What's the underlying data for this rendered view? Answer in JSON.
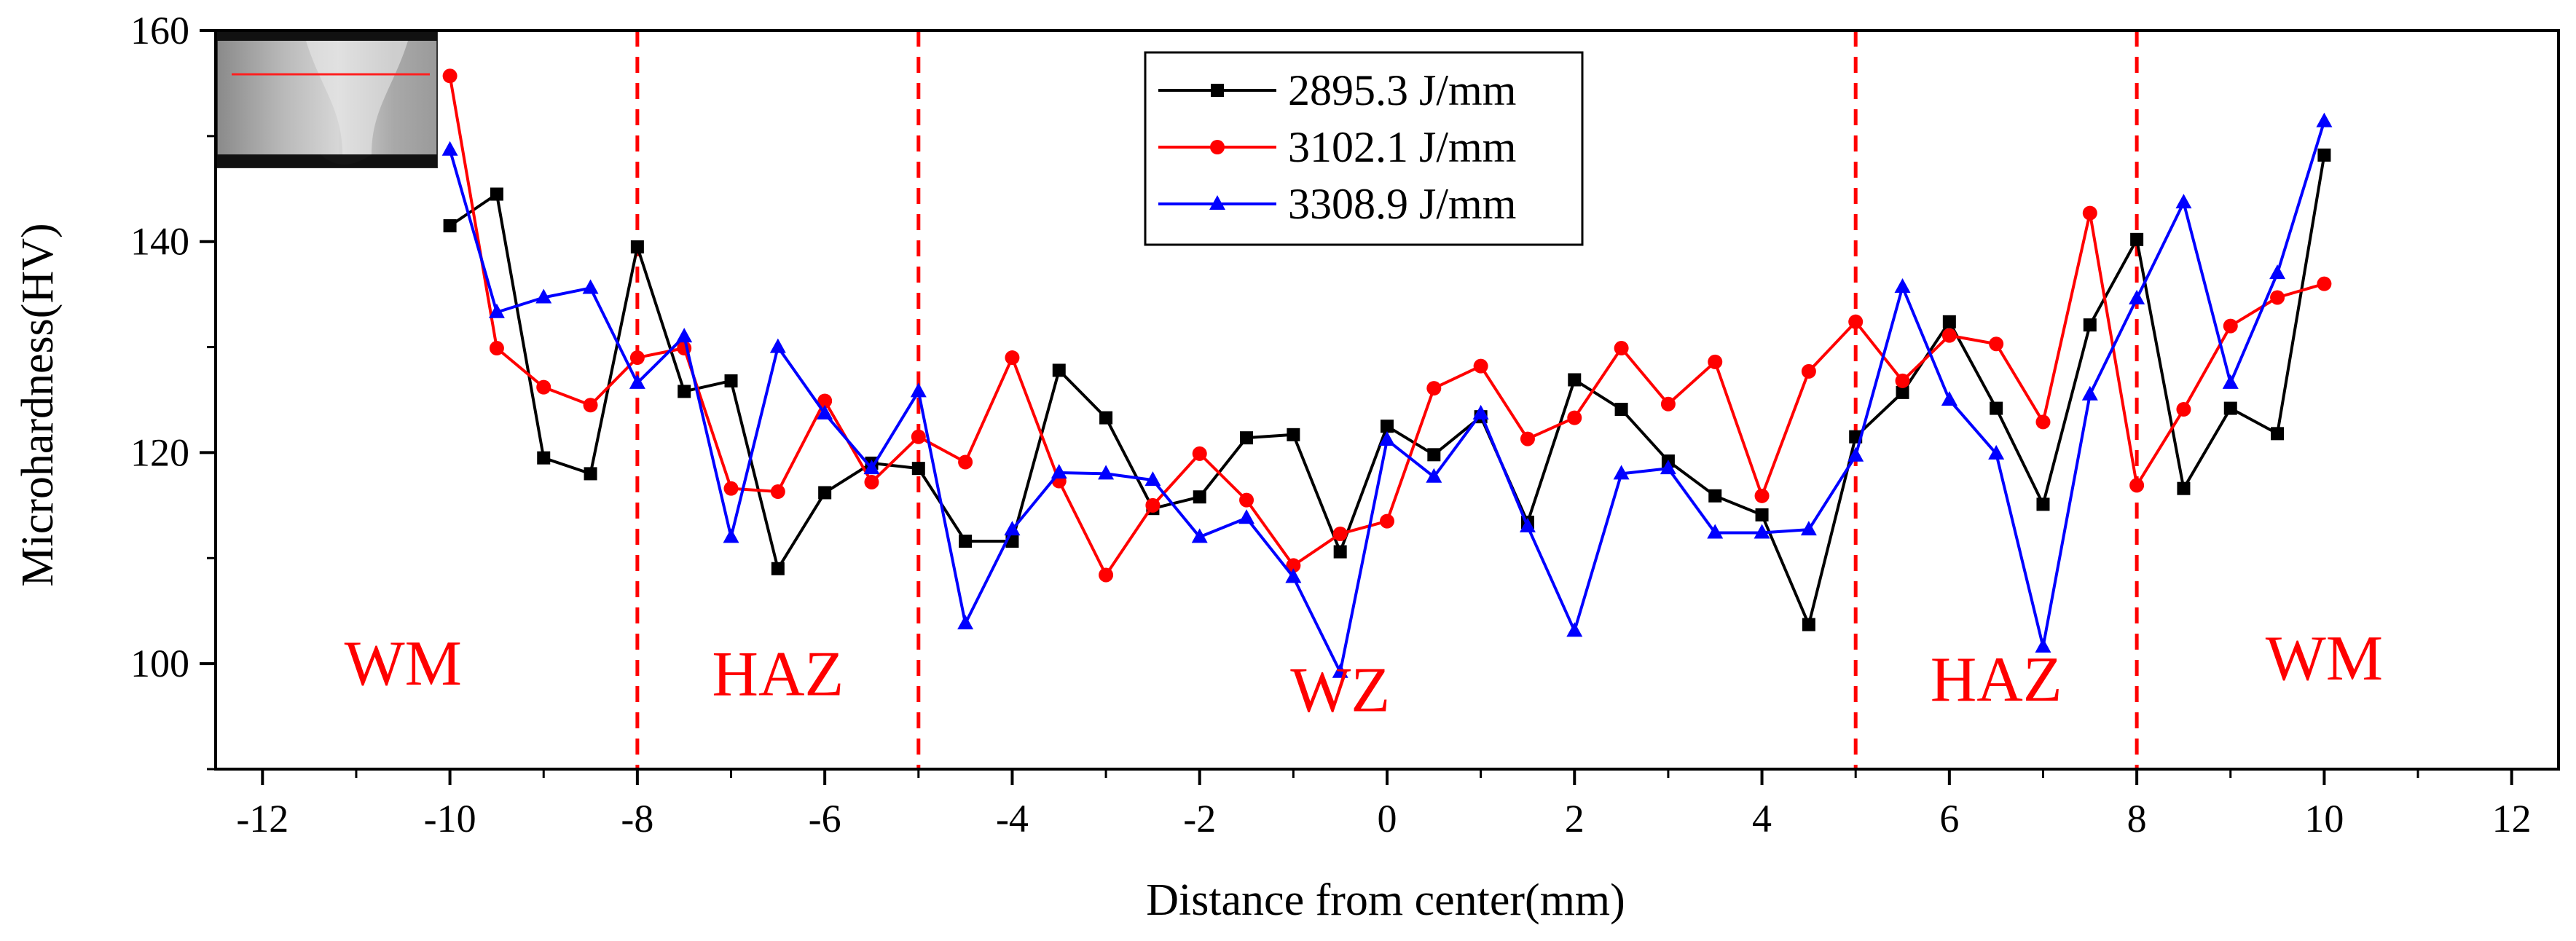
{
  "chart_data": {
    "type": "line",
    "title": "",
    "xlabel": "Distance from center(mm)",
    "ylabel": "Microhardness(HV)",
    "xlim": [
      -12.5,
      12.5
    ],
    "ylim": [
      90,
      160
    ],
    "xticks": [
      -12,
      -10,
      -8,
      -6,
      -4,
      -2,
      0,
      2,
      4,
      6,
      8,
      10,
      12
    ],
    "yticks": [
      100,
      120,
      140,
      160
    ],
    "grid": false,
    "legend_position": "top-center",
    "x": [
      -10,
      -9.5,
      -9,
      -8.5,
      -8,
      -7.5,
      -7,
      -6.5,
      -6,
      -5.5,
      -5,
      -4.5,
      -4,
      -3.5,
      -3,
      -2.5,
      -2,
      -1.5,
      -1,
      -0.5,
      0,
      0.5,
      1,
      1.5,
      2,
      2.5,
      3,
      3.5,
      4,
      4.5,
      5,
      5.5,
      6,
      6.5,
      7,
      7.5,
      8,
      8.5,
      9,
      9.5,
      10
    ],
    "series": [
      {
        "name": "2895.3 J/mm",
        "color": "#000000",
        "marker": "square",
        "values": [
          141.5,
          144.5,
          119.5,
          118,
          139.5,
          125.8,
          126.8,
          109,
          116.2,
          119,
          118.5,
          111.6,
          111.6,
          127.8,
          123.3,
          114.7,
          115.8,
          121.4,
          121.7,
          110.6,
          122.5,
          119.8,
          123.4,
          113.4,
          126.9,
          124.1,
          119.2,
          115.9,
          114.1,
          103.7,
          121.5,
          125.7,
          132.4,
          124.2,
          115.1,
          132.1,
          140.2,
          116.6,
          124.2,
          121.8,
          148.2
        ]
      },
      {
        "name": "3102.1 J/mm",
        "color": "#ff0000",
        "marker": "circle",
        "values": [
          155.7,
          129.9,
          126.2,
          124.5,
          129.0,
          129.9,
          116.6,
          116.3,
          124.9,
          117.2,
          121.5,
          119.1,
          129.0,
          117.3,
          108.4,
          115.0,
          119.9,
          115.5,
          109.3,
          112.3,
          113.5,
          126.1,
          128.2,
          121.3,
          123.3,
          129.9,
          124.6,
          128.6,
          115.9,
          127.7,
          132.4,
          126.8,
          131.1,
          130.3,
          122.9,
          142.7,
          116.9,
          124.1,
          132.0,
          134.7,
          136.0
        ]
      },
      {
        "name": "3308.9 J/mm",
        "color": "#0000ff",
        "marker": "triangle",
        "values": [
          148.7,
          133.3,
          134.7,
          135.6,
          126.6,
          131.0,
          112.0,
          130.0,
          123.7,
          118.5,
          125.8,
          103.8,
          112.7,
          118.1,
          118.0,
          117.4,
          112.0,
          113.8,
          108.2,
          99.2,
          121.2,
          117.7,
          123.7,
          113.0,
          103.1,
          118.0,
          118.5,
          112.4,
          112.4,
          112.7,
          119.7,
          135.7,
          125.0,
          119.9,
          101.6,
          125.5,
          134.6,
          143.7,
          126.6,
          137.0,
          151.4
        ]
      }
    ],
    "annotations": {
      "boundaries": [
        -8,
        -5,
        5,
        8
      ],
      "boundary_color": "#ff0000",
      "zones": [
        {
          "label": "WM",
          "x": -10.5,
          "y": 98
        },
        {
          "label": "HAZ",
          "x": -6.5,
          "y": 97
        },
        {
          "label": "WZ",
          "x": -0.5,
          "y": 95.5
        },
        {
          "label": "HAZ",
          "x": 6.5,
          "y": 96.5
        },
        {
          "label": "WM",
          "x": 10,
          "y": 98.5
        }
      ],
      "zone_color": "#ff0000"
    },
    "inset": "weld cross-section micrograph"
  }
}
